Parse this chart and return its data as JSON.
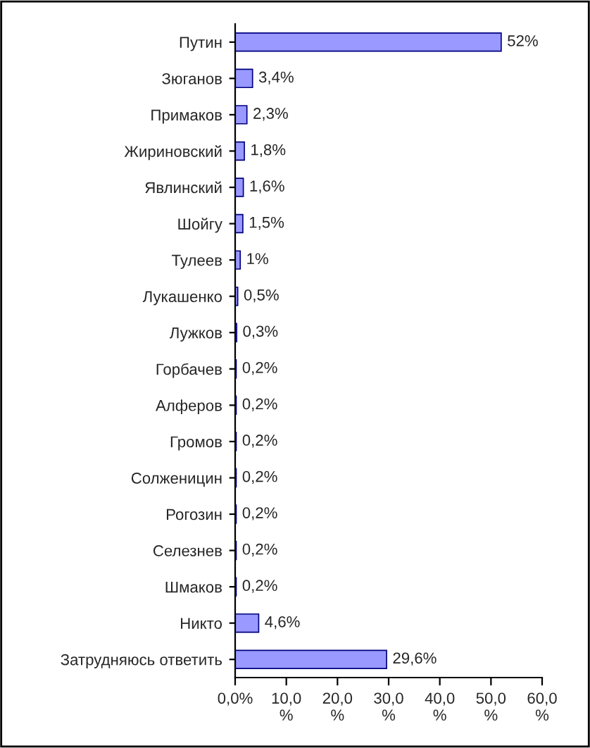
{
  "chart_data": {
    "type": "bar",
    "orientation": "horizontal",
    "categories": [
      "Путин",
      "Зюганов",
      "Примаков",
      "Жириновский",
      "Явлинский",
      "Шойгу",
      "Тулеев",
      "Лукашенко",
      "Лужков",
      "Горбачев",
      "Алферов",
      "Громов",
      "Солженицин",
      "Рогозин",
      "Селезнев",
      "Шмаков",
      "Никто",
      "Затрудняюсь ответить"
    ],
    "values": [
      52,
      3.4,
      2.3,
      1.8,
      1.6,
      1.5,
      1,
      0.5,
      0.3,
      0.2,
      0.2,
      0.2,
      0.2,
      0.2,
      0.2,
      0.2,
      4.6,
      29.6
    ],
    "value_labels": [
      "52%",
      "3,4%",
      "2,3%",
      "1,8%",
      "1,6%",
      "1,5%",
      "1%",
      "0,5%",
      "0,3%",
      "0,2%",
      "0,2%",
      "0,2%",
      "0,2%",
      "0,2%",
      "0,2%",
      "0,2%",
      "4,6%",
      "29,6%"
    ],
    "color": "#9999ff",
    "xlim": [
      0,
      60
    ],
    "xticks": [
      {
        "value": 0,
        "label": "0,0%"
      },
      {
        "value": 10,
        "label": "10,0\n%"
      },
      {
        "value": 20,
        "label": "20,0\n%"
      },
      {
        "value": 30,
        "label": "30,0\n%"
      },
      {
        "value": 40,
        "label": "40,0\n%"
      },
      {
        "value": 50,
        "label": "50,0\n%"
      },
      {
        "value": 60,
        "label": "60,0\n%"
      }
    ],
    "grid": false,
    "legend": false
  }
}
